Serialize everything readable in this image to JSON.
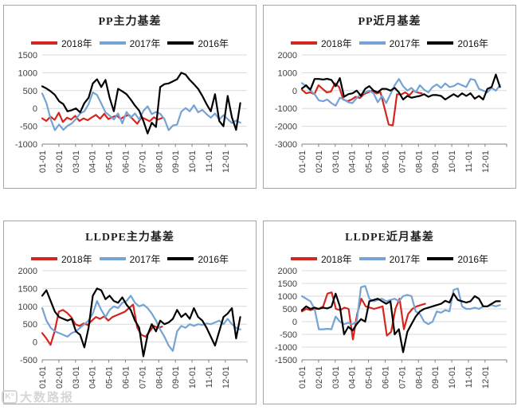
{
  "legend": [
    {
      "label": "2018年",
      "color": "#d6251f"
    },
    {
      "label": "2017年",
      "color": "#74a3d4"
    },
    {
      "label": "2016年",
      "color": "#000000"
    }
  ],
  "colors": {
    "grid": "#d9d9d9",
    "axis": "#808080",
    "tick_text": "#404040"
  },
  "watermark": {
    "logo": "K°",
    "text": "大数路报"
  },
  "x_labels": [
    "01-01",
    "02-01",
    "03-01",
    "04-01",
    "05-01",
    "06-01",
    "07-01",
    "08-01",
    "09-01",
    "10-01",
    "11-01",
    "12-01"
  ],
  "chart_data": [
    {
      "type": "line",
      "title": "PP主力基差",
      "ylim": [
        -1000,
        1500
      ],
      "ystep": 500,
      "x_axis_months": 12.3,
      "grid": true,
      "legend_position": "top",
      "categories": [
        "01-01",
        "02-01",
        "03-01",
        "04-01",
        "05-01",
        "06-01",
        "07-01",
        "08-01",
        "09-01",
        "10-01",
        "11-01",
        "12-01"
      ],
      "series": [
        {
          "name": "2018年",
          "color": "#d6251f",
          "x_end": 7.2,
          "values": [
            -280,
            -350,
            -230,
            -320,
            -120,
            -380,
            -260,
            -310,
            -210,
            -350,
            -280,
            -330,
            -250,
            -180,
            -290,
            -150,
            -300,
            -240,
            -200,
            -290,
            -220,
            -180,
            -310,
            -430,
            -250,
            -300,
            -360,
            -250,
            -310,
            -270
          ]
        },
        {
          "name": "2017年",
          "color": "#74a3d4",
          "x_end": 11.9,
          "values": [
            420,
            150,
            -300,
            -610,
            -450,
            -600,
            -490,
            -420,
            -300,
            -140,
            -80,
            120,
            450,
            380,
            140,
            -110,
            -200,
            -310,
            -140,
            -420,
            -100,
            -260,
            -140,
            -310,
            -70,
            60,
            -160,
            -100,
            -150,
            -300,
            -610,
            -480,
            -450,
            -90,
            10,
            -80,
            90,
            -110,
            -40,
            -160,
            -260,
            -140,
            -310,
            -190,
            -300,
            -410,
            -340,
            -400
          ]
        },
        {
          "name": "2016年",
          "color": "#000000",
          "x_end": 11.9,
          "values": [
            620,
            560,
            480,
            380,
            200,
            120,
            -80,
            -50,
            0,
            -110,
            150,
            300,
            700,
            820,
            600,
            800,
            300,
            -80,
            550,
            480,
            400,
            250,
            80,
            -60,
            -350,
            -700,
            -400,
            -520,
            600,
            680,
            700,
            760,
            820,
            1000,
            950,
            800,
            680,
            550,
            350,
            120,
            -80,
            400,
            -350,
            -500,
            350,
            -250,
            -600,
            150
          ]
        }
      ]
    },
    {
      "type": "line",
      "title": "PP近月基差",
      "ylim": [
        -3000,
        2000
      ],
      "ystep": 1000,
      "x_axis_months": 12.3,
      "grid": true,
      "legend_position": "top",
      "categories": [
        "01-01",
        "02-01",
        "03-01",
        "04-01",
        "05-01",
        "06-01",
        "07-01",
        "08-01",
        "09-01",
        "10-01",
        "11-01",
        "12-01"
      ],
      "series": [
        {
          "name": "2018年",
          "color": "#d6251f",
          "x_end": 7.2,
          "values": [
            50,
            -150,
            -100,
            -200,
            300,
            100,
            -100,
            -60,
            400,
            200,
            -500,
            -600,
            -500,
            -350,
            -420,
            -200,
            -100,
            0,
            -160,
            -100,
            -1000,
            -1900,
            -1950,
            -200,
            -220,
            -100,
            -260,
            0,
            -110,
            -150
          ]
        },
        {
          "name": "2017年",
          "color": "#74a3d4",
          "x_end": 11.9,
          "values": [
            420,
            250,
            0,
            -200,
            -550,
            -600,
            -500,
            -700,
            -850,
            -400,
            -500,
            -650,
            -700,
            -400,
            -200,
            -100,
            0,
            -150,
            -650,
            -300,
            -700,
            -200,
            300,
            650,
            250,
            0,
            150,
            -100,
            300,
            50,
            -100,
            200,
            350,
            150,
            400,
            200,
            250,
            400,
            300,
            200,
            650,
            600,
            100,
            0,
            -100,
            150,
            0,
            300
          ]
        },
        {
          "name": "2016年",
          "color": "#000000",
          "x_end": 11.9,
          "values": [
            120,
            300,
            50,
            650,
            650,
            620,
            660,
            600,
            250,
            700,
            -350,
            -200,
            -150,
            0,
            -300,
            100,
            250,
            0,
            -100,
            100,
            100,
            0,
            150,
            -100,
            -500,
            -300,
            -400,
            -350,
            -300,
            -200,
            -350,
            -250,
            -250,
            -300,
            -500,
            -350,
            -200,
            -350,
            -150,
            -300,
            -150,
            -450,
            -300,
            -500,
            100,
            200,
            900,
            200
          ]
        }
      ]
    },
    {
      "type": "line",
      "title": "LLDPE主力基差",
      "ylim": [
        -500,
        2000
      ],
      "ystep": 500,
      "x_axis_months": 12.3,
      "grid": true,
      "legend_position": "top",
      "categories": [
        "01-01",
        "02-01",
        "03-01",
        "04-01",
        "05-01",
        "06-01",
        "07-01",
        "08-01",
        "09-01",
        "10-01",
        "11-01",
        "12-01"
      ],
      "series": [
        {
          "name": "2018年",
          "color": "#d6251f",
          "x_end": 7.2,
          "values": [
            250,
            100,
            -80,
            300,
            850,
            900,
            820,
            700,
            500,
            450,
            520,
            480,
            600,
            700,
            650,
            720,
            600,
            700,
            750,
            800,
            850,
            950,
            1050,
            400,
            200,
            150,
            300,
            450,
            400,
            430
          ]
        },
        {
          "name": "2017年",
          "color": "#74a3d4",
          "x_end": 11.9,
          "values": [
            950,
            600,
            400,
            300,
            250,
            200,
            150,
            250,
            300,
            400,
            500,
            600,
            800,
            1150,
            900,
            700,
            900,
            1000,
            950,
            1100,
            1150,
            1300,
            1100,
            1000,
            1050,
            950,
            800,
            600,
            350,
            150,
            -100,
            -250,
            300,
            450,
            400,
            500,
            450,
            500,
            480,
            520,
            500,
            550,
            600,
            500,
            650,
            500,
            400,
            350
          ]
        },
        {
          "name": "2016年",
          "color": "#000000",
          "x_end": 11.9,
          "values": [
            1300,
            1450,
            1150,
            850,
            700,
            650,
            600,
            650,
            300,
            200,
            -150,
            400,
            1300,
            1500,
            1450,
            1200,
            1300,
            1150,
            1100,
            1250,
            1050,
            900,
            600,
            400,
            -400,
            200,
            500,
            300,
            600,
            500,
            550,
            650,
            900,
            700,
            800,
            650,
            950,
            700,
            600,
            400,
            150,
            -100,
            300,
            700,
            800,
            950,
            100,
            700
          ]
        }
      ]
    },
    {
      "type": "line",
      "title": "LLDPE近月基差",
      "ylim": [
        -1500,
        2000
      ],
      "ystep": 500,
      "x_axis_months": 12.3,
      "grid": true,
      "legend_position": "top",
      "categories": [
        "01-01",
        "02-01",
        "03-01",
        "04-01",
        "05-01",
        "06-01",
        "07-01",
        "08-01",
        "09-01",
        "10-01",
        "11-01",
        "12-01"
      ],
      "series": [
        {
          "name": "2018年",
          "color": "#d6251f",
          "x_end": 7.4,
          "values": [
            400,
            500,
            450,
            500,
            500,
            600,
            1100,
            1150,
            500,
            450,
            550,
            500,
            -700,
            300,
            900,
            600,
            550,
            500,
            550,
            600,
            -550,
            -400,
            500,
            900,
            -300,
            300,
            500,
            600,
            650,
            700
          ]
        },
        {
          "name": "2017年",
          "color": "#74a3d4",
          "x_end": 11.9,
          "values": [
            1000,
            900,
            800,
            500,
            -300,
            -300,
            -280,
            -300,
            200,
            0,
            -100,
            -50,
            -100,
            0,
            1350,
            1400,
            900,
            800,
            850,
            900,
            800,
            850,
            900,
            800,
            1000,
            1050,
            1000,
            400,
            300,
            0,
            -100,
            0,
            400,
            350,
            450,
            400,
            1250,
            1300,
            600,
            500,
            500,
            550,
            500,
            600,
            600,
            650,
            600,
            650
          ]
        },
        {
          "name": "2016年",
          "color": "#000000",
          "x_end": 11.9,
          "values": [
            450,
            600,
            500,
            550,
            500,
            550,
            520,
            580,
            1100,
            600,
            -500,
            -200,
            -350,
            -100,
            100,
            0,
            800,
            850,
            900,
            800,
            700,
            800,
            -500,
            -300,
            -1200,
            -400,
            -100,
            200,
            400,
            500,
            550,
            600,
            650,
            700,
            820,
            750,
            1100,
            850,
            800,
            750,
            800,
            1000,
            900,
            600,
            600,
            700,
            800,
            800
          ]
        }
      ]
    }
  ]
}
